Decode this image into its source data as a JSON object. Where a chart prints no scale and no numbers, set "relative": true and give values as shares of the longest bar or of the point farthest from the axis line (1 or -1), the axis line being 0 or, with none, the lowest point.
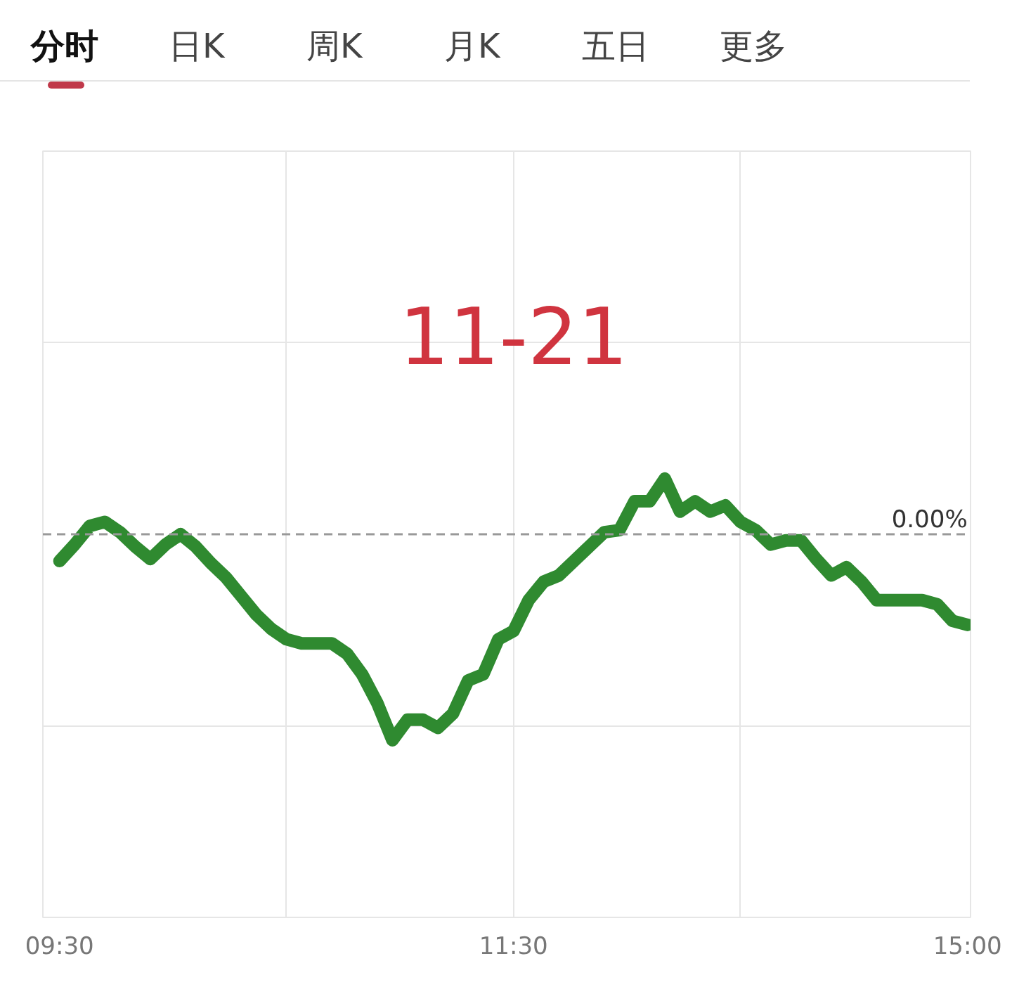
{
  "chart_data": {
    "type": "line",
    "title": "11-21",
    "relative": true,
    "annotations": [
      "分时",
      "日K",
      "周K",
      "月K",
      "五日",
      "更多"
    ],
    "categories": [
      "09:30",
      null,
      null,
      null,
      null,
      null,
      null,
      null,
      null,
      null,
      null,
      null,
      null,
      null,
      null,
      null,
      null,
      null,
      null,
      null,
      null,
      null,
      null,
      null,
      null,
      null,
      null,
      null,
      null,
      null,
      "11:30",
      null,
      null,
      null,
      null,
      null,
      null,
      null,
      null,
      null,
      null,
      null,
      null,
      null,
      null,
      null,
      null,
      null,
      null,
      null,
      null,
      null,
      null,
      null,
      null,
      null,
      null,
      null,
      null,
      null,
      "15:00"
    ],
    "series": [
      {
        "color": "#2f8a30",
        "values": [
          -0.13,
          -0.05,
          0.04,
          0.06,
          0.01,
          -0.06,
          -0.12,
          -0.05,
          0,
          -0.06,
          -0.14,
          -0.21,
          -0.3,
          -0.39,
          -0.46,
          -0.51,
          -0.53,
          -0.53,
          -0.53,
          -0.58,
          -0.68,
          -0.82,
          -1,
          -0.9,
          -0.9,
          -0.94,
          -0.87,
          -0.71,
          -0.68,
          -0.51,
          -0.47,
          -0.32,
          -0.23,
          -0.2,
          -0.13,
          -0.06,
          0.01,
          0.02,
          0.16,
          0.16,
          0.27,
          0.11,
          0.16,
          0.11,
          0.14,
          0.06,
          0.02,
          -0.05,
          -0.03,
          -0.03,
          -0.12,
          -0.2,
          -0.16,
          -0.23,
          -0.32,
          -0.32,
          -0.32,
          -0.32,
          -0.34,
          -0.42,
          -0.44
        ]
      }
    ],
    "ref_lines": [
      {
        "axis": "y",
        "value": 0,
        "label": "0.00%",
        "color": "#999999",
        "line_style": "dashed"
      }
    ],
    "grid": true,
    "marker": "none",
    "line_style": "solid"
  }
}
